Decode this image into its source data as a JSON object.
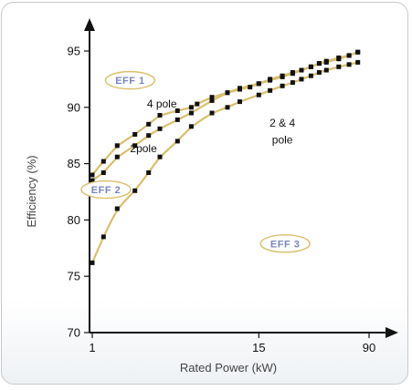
{
  "chart_data": {
    "type": "scatter",
    "xlabel": "Rated Power (kW)",
    "ylabel": "Efficiency (%)",
    "xscale": "log",
    "xlim": [
      1,
      100
    ],
    "ylim": [
      70,
      97
    ],
    "x_ticks": [
      1,
      15,
      90
    ],
    "y_ticks": [
      70,
      75,
      80,
      85,
      90,
      95
    ],
    "colors": {
      "curve": "#d9bf6b",
      "marker": "#111111",
      "axis": "#111111",
      "badge_border": "#d9bf6b",
      "badge_text": "#7a86c4"
    },
    "series": [
      {
        "name": "4 pole",
        "x": [
          1,
          1.2,
          1.5,
          2,
          2.5,
          3,
          4,
          5,
          5.5,
          7,
          9,
          11,
          13,
          15,
          18,
          22,
          26,
          30,
          35,
          40,
          45,
          55,
          65,
          75
        ],
        "y": [
          84.0,
          85.2,
          86.6,
          87.6,
          88.5,
          89.3,
          89.7,
          90.0,
          90.3,
          90.9,
          91.3,
          91.6,
          91.8,
          92.1,
          92.4,
          92.7,
          93.0,
          93.3,
          93.6,
          93.9,
          94.0,
          94.3,
          94.6,
          94.9
        ]
      },
      {
        "name": "2pole",
        "x": [
          1,
          1.2,
          1.5,
          2,
          2.5,
          3,
          4,
          5,
          7,
          9,
          11,
          15,
          18,
          22,
          26,
          30,
          35,
          40,
          45,
          55,
          65,
          75
        ],
        "y": [
          83.5,
          84.2,
          85.6,
          86.6,
          87.5,
          88.1,
          88.9,
          89.5,
          90.6,
          91.3,
          91.7,
          92.1,
          92.5,
          92.8,
          93.1,
          93.3,
          93.6,
          93.9,
          94.1,
          94.4,
          94.6,
          94.9
        ]
      },
      {
        "name": "2 & 4 pole",
        "x": [
          1,
          1.2,
          1.5,
          2,
          2.5,
          3,
          4,
          5,
          7,
          9,
          11,
          15,
          18,
          22,
          26,
          30,
          35,
          40,
          45,
          55,
          65,
          75
        ],
        "y": [
          76.2,
          78.5,
          81.0,
          82.6,
          84.2,
          85.6,
          87.0,
          88.3,
          89.5,
          90.0,
          90.5,
          91.1,
          91.5,
          91.9,
          92.2,
          92.5,
          92.8,
          93.1,
          93.3,
          93.6,
          93.8,
          94.0
        ]
      }
    ],
    "annotations": [
      {
        "text": "4 pole",
        "x": 3.1,
        "y": 90.0
      },
      {
        "text": "2pole",
        "x": 2.3,
        "y": 86.0
      },
      {
        "text": "2 & 4",
        "x": 22,
        "y": 88.3
      },
      {
        "text": "pole",
        "x": 22,
        "y": 86.8
      }
    ],
    "badges": [
      {
        "text": "EFF 1",
        "x": 1.85,
        "y": 92.4
      },
      {
        "text": "EFF 2",
        "x": 1.25,
        "y": 82.7
      },
      {
        "text": "EFF 3",
        "x": 23,
        "y": 77.9
      }
    ]
  }
}
